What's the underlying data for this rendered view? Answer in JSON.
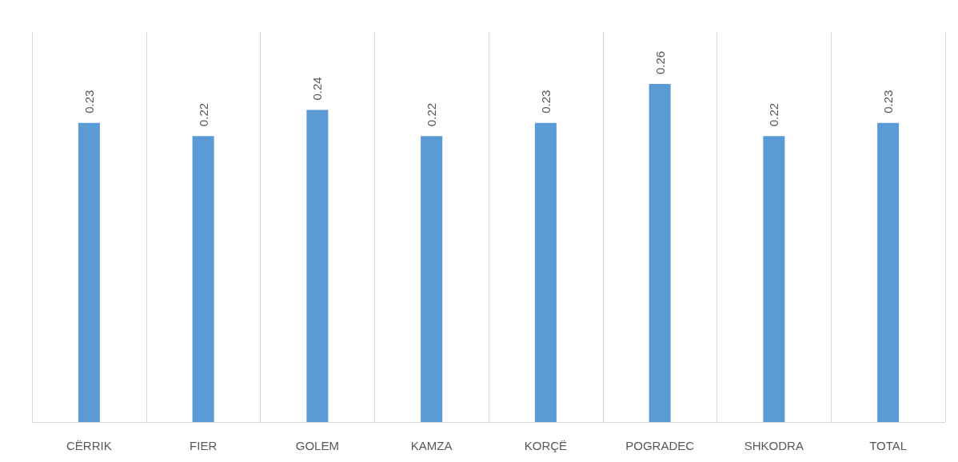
{
  "chart_data": {
    "type": "bar",
    "categories": [
      "CËRRIK",
      "FIER",
      "GOLEM",
      "KAMZA",
      "KORÇË",
      "POGRADEC",
      "SHKODRA",
      "TOTAL"
    ],
    "values": [
      0.23,
      0.22,
      0.24,
      0.22,
      0.23,
      0.26,
      0.22,
      0.23
    ],
    "color": "#5b9bd5",
    "data_labels": true,
    "grid": "x"
  }
}
